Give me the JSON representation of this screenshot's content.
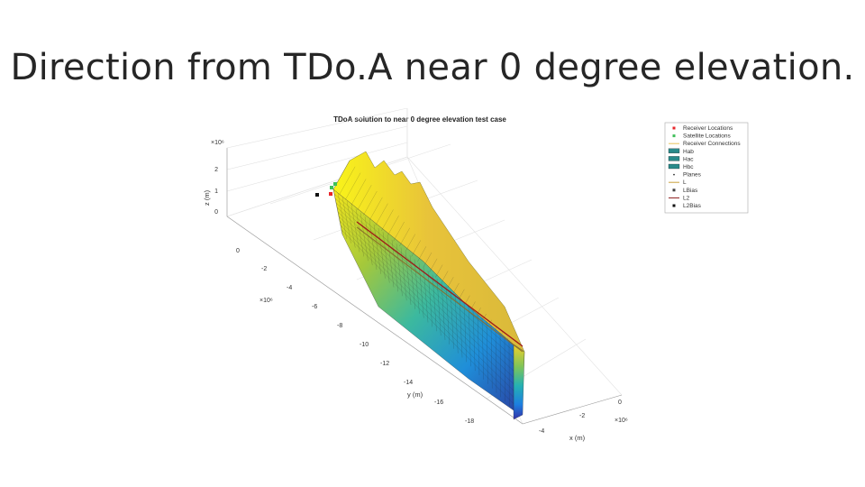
{
  "slide": {
    "title": "Direction from TDo.A near 0 degree elevation."
  },
  "chart_data": {
    "type": "surface3d",
    "title": "TDoA solution to near 0 degree elevation test case",
    "xlabel": "x (m)",
    "ylabel": "y (m)",
    "zlabel": "z (m)",
    "x_exponent": "×10⁶",
    "y_exponent": "×10⁶",
    "z_exponent": "×10⁶",
    "x_ticks": [
      "0",
      "-2",
      "-4"
    ],
    "y_ticks": [
      "0",
      "-2",
      "-4",
      "-6",
      "-8",
      "-10",
      "-12",
      "-14",
      "-16",
      "-18"
    ],
    "z_ticks": [
      "2",
      "1",
      "0"
    ],
    "grid": true,
    "legend_position": "top-right",
    "colormap": "parula",
    "legend": [
      {
        "label": "Receiver Locations",
        "marker": "square",
        "color": "#e8262b"
      },
      {
        "label": "Satellite Locations",
        "marker": "square",
        "color": "#3fbf5a"
      },
      {
        "label": "Receiver Connections",
        "marker": "line",
        "color": "#e8c35a"
      },
      {
        "label": "Hab",
        "marker": "patch",
        "color": "#2a8a8a"
      },
      {
        "label": "Hac",
        "marker": "patch",
        "color": "#2a8a8a"
      },
      {
        "label": "Hbc",
        "marker": "patch",
        "color": "#2a8a8a"
      },
      {
        "label": "Planes",
        "marker": "dot",
        "color": "#333333"
      },
      {
        "label": "L",
        "marker": "line",
        "color": "#c9a13a"
      },
      {
        "label": "LBias",
        "marker": "square",
        "color": "#444444"
      },
      {
        "label": "L2",
        "marker": "line",
        "color": "#8a1a1a"
      },
      {
        "label": "L2Bias",
        "marker": "square",
        "color": "#111111"
      }
    ]
  }
}
